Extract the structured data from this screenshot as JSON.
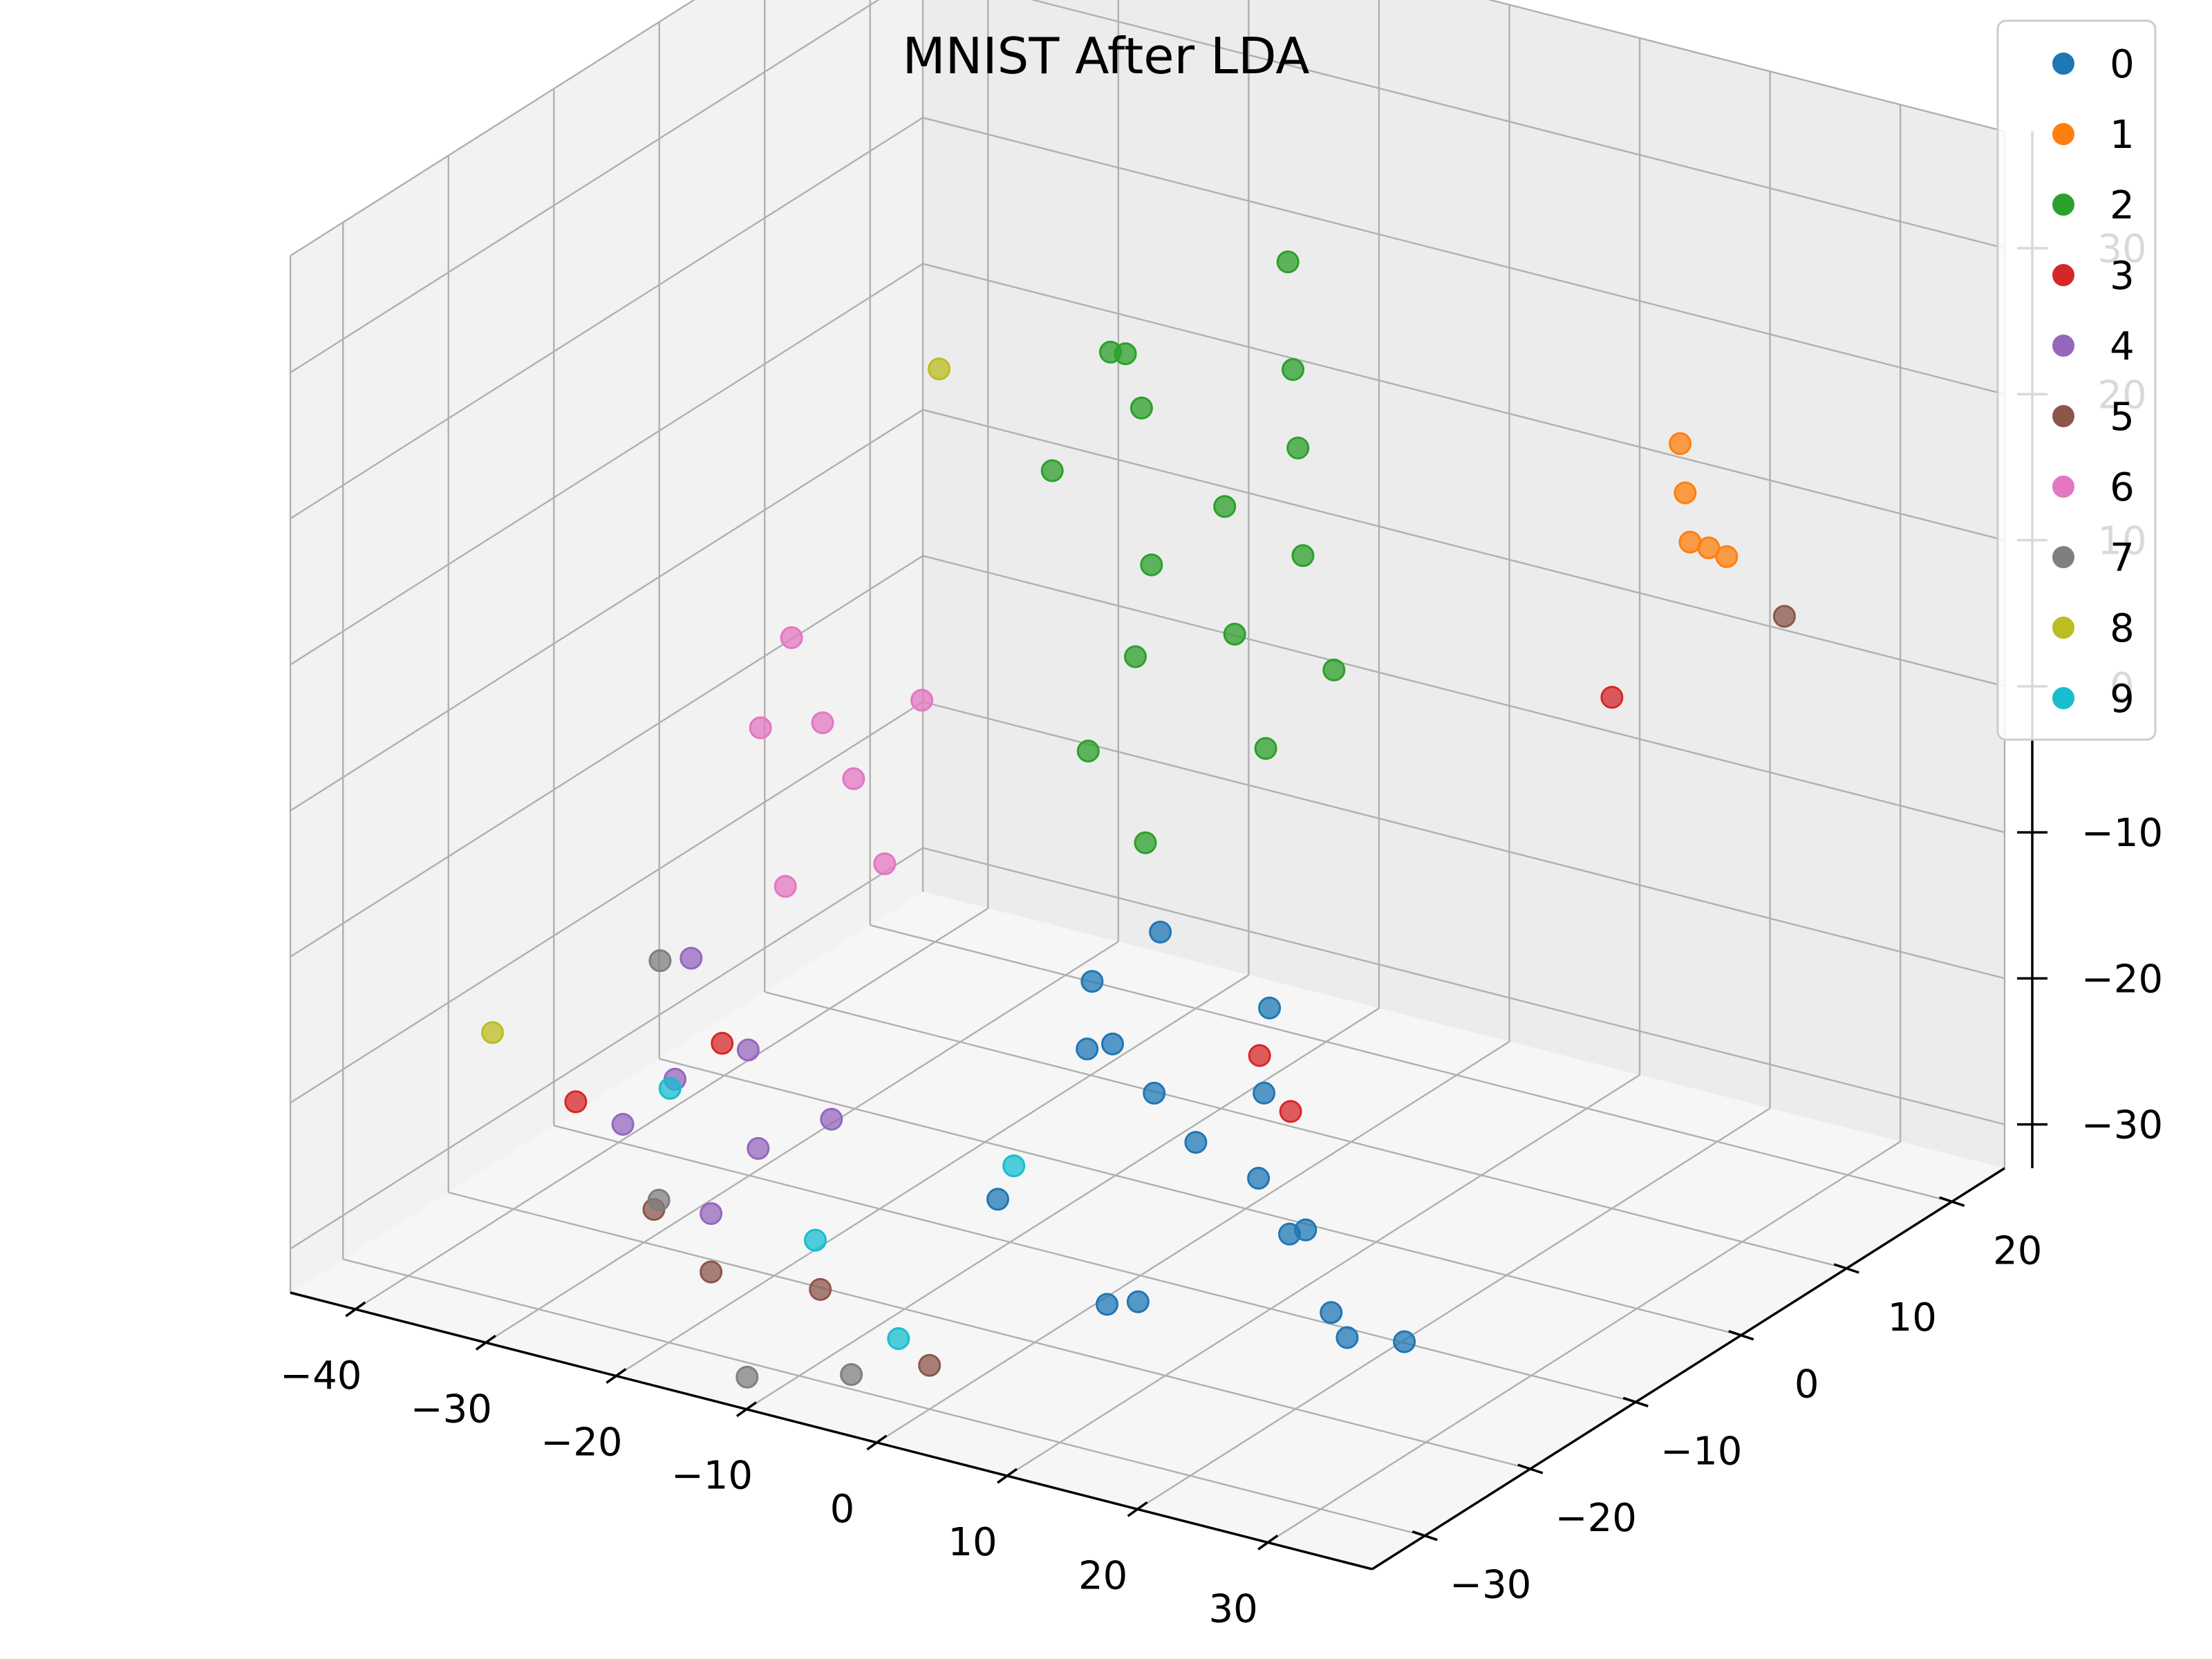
{
  "chart_data": {
    "type": "scatter",
    "projection": "3d",
    "title": "MNIST After LDA",
    "xlabel": "",
    "ylabel": "",
    "zlabel": "",
    "xlim": [
      -45,
      38
    ],
    "ylim": [
      -35,
      25
    ],
    "zlim": [
      -33,
      38
    ],
    "x_ticks": [
      "−40",
      "−30",
      "−20",
      "−10",
      "0",
      "10",
      "20",
      "30"
    ],
    "y_ticks": [
      "−30",
      "−20",
      "−10",
      "0",
      "10",
      "20"
    ],
    "z_ticks": [
      "−30",
      "−20",
      "−10",
      "0",
      "10",
      "20",
      "30"
    ],
    "x_tick_values": [
      -40,
      -30,
      -20,
      -10,
      0,
      10,
      20,
      30
    ],
    "y_tick_values": [
      -30,
      -20,
      -10,
      0,
      10,
      20
    ],
    "z_tick_values": [
      -30,
      -20,
      -10,
      0,
      10,
      20,
      30
    ],
    "grid": true,
    "legend_position": "top-right",
    "series": [
      {
        "name": "0",
        "color": "#1f77b4",
        "points": [
          [
            10,
            -25,
            -8
          ],
          [
            14,
            -26,
            -10
          ],
          [
            18,
            -27,
            -12
          ],
          [
            22,
            -26,
            -14
          ],
          [
            26,
            -28,
            -16
          ],
          [
            6,
            -22,
            -6
          ],
          [
            30,
            -29,
            -20
          ],
          [
            16,
            -30,
            -22
          ],
          [
            8,
            -18,
            -4
          ],
          [
            24,
            -24,
            -18
          ],
          [
            12,
            -28,
            -24
          ],
          [
            20,
            -23,
            -10
          ],
          [
            28,
            -25,
            -24
          ],
          [
            4,
            -20,
            -12
          ],
          [
            34,
            -27,
            -22
          ],
          [
            2,
            -26,
            -20
          ],
          [
            18,
            -20,
            -6
          ]
        ]
      },
      {
        "name": "1",
        "color": "#ff7f0e",
        "points": [
          [
            24,
            12,
            16
          ],
          [
            26,
            10,
            14
          ],
          [
            22,
            14,
            18
          ],
          [
            28,
            11,
            13
          ],
          [
            25,
            13,
            12
          ]
        ]
      },
      {
        "name": "2",
        "color": "#2ca02c",
        "points": [
          [
            -4,
            -4,
            12
          ],
          [
            0,
            -2,
            16
          ],
          [
            4,
            -6,
            10
          ],
          [
            -8,
            0,
            20
          ],
          [
            2,
            2,
            24
          ],
          [
            -2,
            -8,
            8
          ],
          [
            6,
            -2,
            14
          ],
          [
            -6,
            -4,
            26
          ],
          [
            8,
            -8,
            4
          ],
          [
            -10,
            -6,
            18
          ],
          [
            0,
            4,
            30
          ],
          [
            4,
            0,
            20
          ],
          [
            -4,
            -10,
            2
          ],
          [
            10,
            -4,
            8
          ],
          [
            -12,
            2,
            22
          ],
          [
            2,
            -12,
            -2
          ]
        ]
      },
      {
        "name": "3",
        "color": "#d62728",
        "points": [
          [
            14,
            -16,
            -12
          ],
          [
            -32,
            -24,
            -22
          ],
          [
            20,
            10,
            2
          ],
          [
            -24,
            -20,
            -18
          ],
          [
            18,
            -18,
            -14
          ]
        ]
      },
      {
        "name": "4",
        "color": "#9467bd",
        "points": [
          [
            -26,
            -22,
            -20
          ],
          [
            -22,
            -20,
            -18
          ],
          [
            -18,
            -24,
            -22
          ],
          [
            -28,
            -18,
            -14
          ],
          [
            -20,
            -26,
            -26
          ],
          [
            -14,
            -22,
            -20
          ],
          [
            -30,
            -22,
            -24
          ]
        ]
      },
      {
        "name": "5",
        "color": "#8c564b",
        "points": [
          [
            -20,
            -26,
            -30
          ],
          [
            -10,
            -28,
            -28
          ],
          [
            30,
            14,
            8
          ],
          [
            -26,
            -24,
            -28
          ],
          [
            0,
            -30,
            -30
          ]
        ]
      },
      {
        "name": "6",
        "color": "#e377c2",
        "points": [
          [
            -26,
            -8,
            -2
          ],
          [
            -22,
            -10,
            -4
          ],
          [
            -30,
            -6,
            2
          ],
          [
            -18,
            -12,
            -8
          ],
          [
            -34,
            -4,
            -6
          ],
          [
            -24,
            -14,
            -10
          ],
          [
            -20,
            -6,
            0
          ]
        ]
      },
      {
        "name": "7",
        "color": "#7f7f7f",
        "points": [
          [
            -14,
            -30,
            -34
          ],
          [
            -6,
            -30,
            -32
          ],
          [
            -24,
            -26,
            -26
          ],
          [
            -32,
            -16,
            -16
          ]
        ]
      },
      {
        "name": "8",
        "color": "#bcbd22",
        "points": [
          [
            -40,
            -22,
            -20
          ],
          [
            -30,
            8,
            14
          ]
        ]
      },
      {
        "name": "9",
        "color": "#17becf",
        "points": [
          [
            -4,
            -28,
            -30
          ],
          [
            -12,
            -26,
            -26
          ],
          [
            -28,
            -20,
            -22
          ],
          [
            0,
            -22,
            -20
          ]
        ]
      }
    ]
  }
}
